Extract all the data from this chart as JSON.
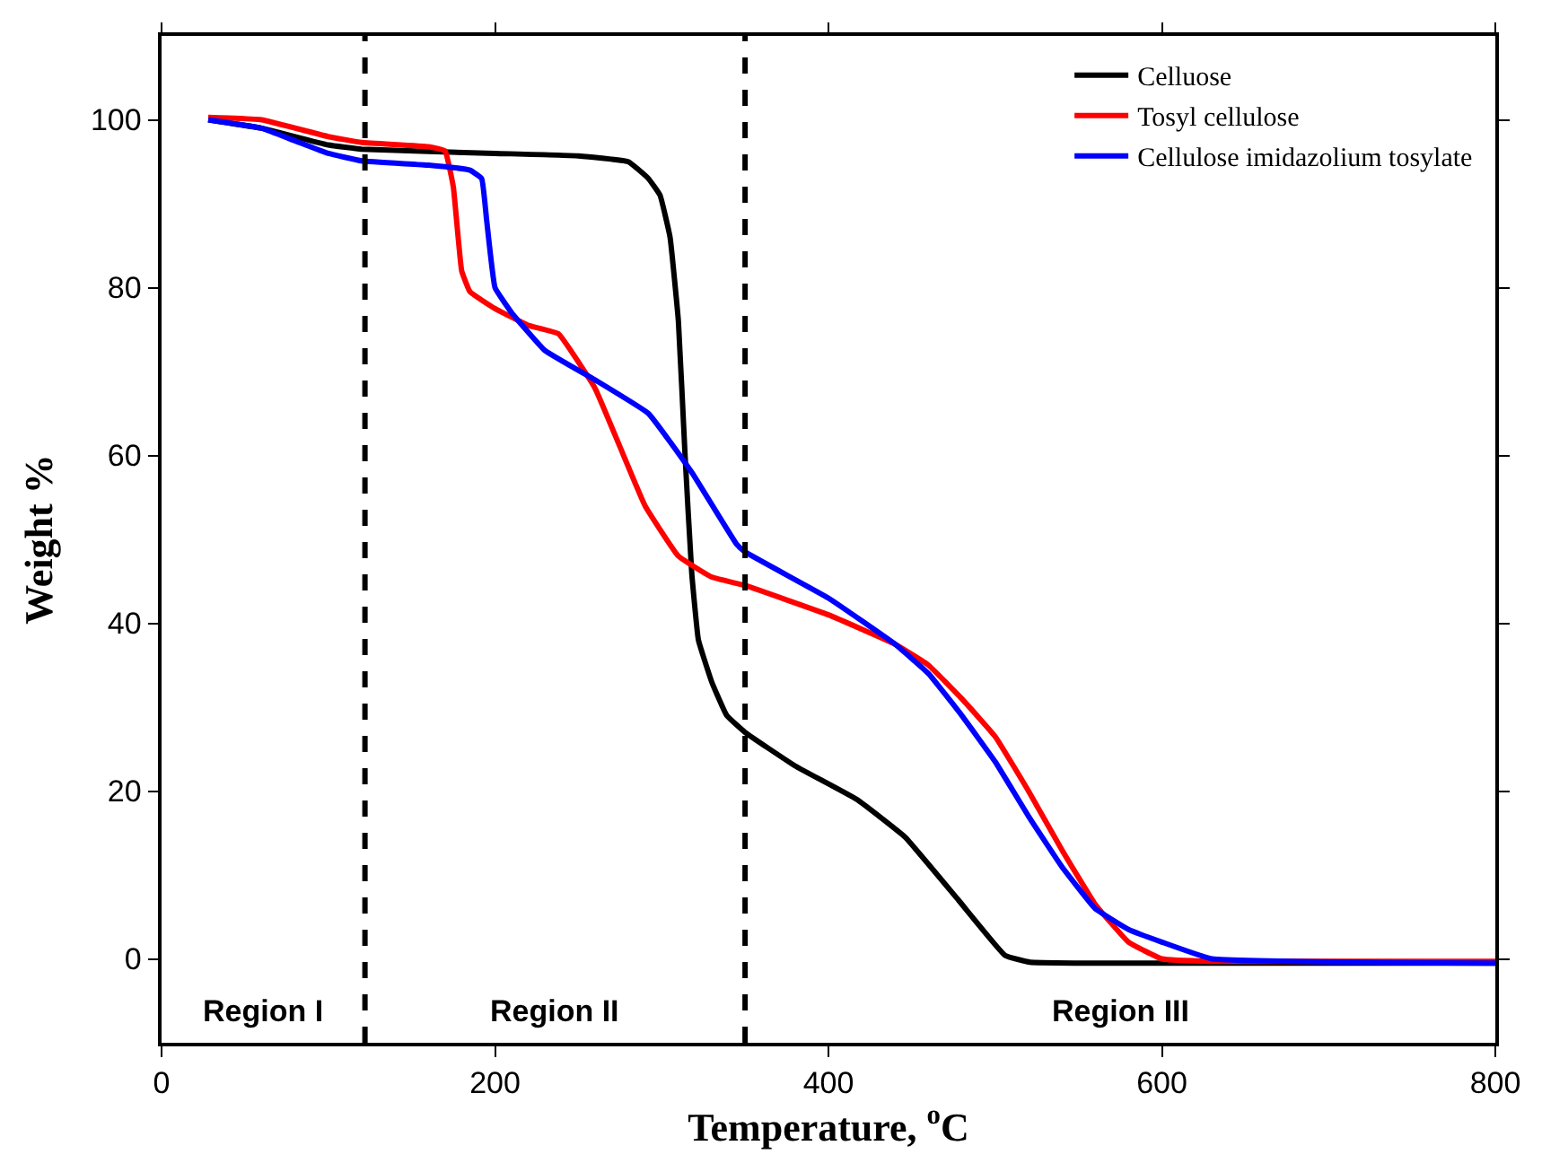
{
  "chart_data": {
    "type": "line",
    "xlabel": "Temperature, $^{o}$C",
    "ylabel": "Weight %",
    "xlim": [
      0,
      800
    ],
    "ylim": [
      -10,
      110
    ],
    "xticks": [
      0,
      200,
      400,
      600,
      800
    ],
    "yticks": [
      0,
      20,
      40,
      60,
      80,
      100
    ],
    "legend": "top right",
    "line_style": "solid",
    "marker": "none",
    "series": [
      {
        "name": "Celluose",
        "color": "#000000",
        "x": [
          28,
          60,
          100,
          120,
          200,
          250,
          280,
          292,
          299,
          305,
          310,
          314,
          318,
          322,
          330,
          339,
          350,
          380,
          417,
          446,
          478,
          506,
          521,
          550,
          800
        ],
        "values": [
          100,
          99,
          97,
          96.5,
          96,
          95.7,
          95,
          93,
          91,
          86,
          76,
          60,
          46,
          38,
          33,
          29,
          27,
          23,
          19,
          14.5,
          7,
          0.4,
          -0.4,
          -0.5,
          -0.5
        ]
      },
      {
        "name": "Tosyl cellulose",
        "color": "#ff0000",
        "x": [
          28,
          60,
          100,
          120,
          160,
          170,
          175,
          180,
          185,
          200,
          220,
          238,
          260,
          275,
          290,
          310,
          330,
          350,
          400,
          440,
          460,
          480,
          500,
          520,
          540,
          560,
          580,
          600,
          630,
          800
        ],
        "values": [
          100.3,
          100,
          98,
          97.3,
          96.8,
          96.3,
          92,
          82,
          79.5,
          77.5,
          75.5,
          74.5,
          68,
          61,
          54,
          48,
          45.5,
          44.5,
          41,
          37.5,
          35,
          31,
          26.5,
          20,
          13,
          6.5,
          2,
          0,
          -0.3,
          -0.3
        ]
      },
      {
        "name": "Cellulose imidazolium tosylate",
        "color": "#0000ff",
        "x": [
          28,
          60,
          80,
          100,
          120,
          160,
          185,
          192,
          195,
          200,
          210,
          230,
          260,
          292,
          318,
          345,
          350,
          400,
          440,
          460,
          480,
          500,
          520,
          540,
          560,
          580,
          600,
          630,
          800
        ],
        "values": [
          100,
          99,
          97.5,
          96,
          95.1,
          94.6,
          94,
          93,
          88,
          80,
          77,
          72.5,
          69,
          65,
          58,
          49.4,
          48.5,
          43,
          37.5,
          34,
          29,
          23.5,
          17,
          11,
          6,
          3.5,
          2,
          0,
          -0.5
        ]
      }
    ],
    "ref_lines": [
      {
        "axis": "x",
        "value": 122,
        "color": "#000000",
        "line_style": "dashed"
      },
      {
        "axis": "x",
        "value": 350,
        "color": "#000000",
        "line_style": "dashed"
      }
    ],
    "annotations": [
      "Region I",
      "Region II",
      "Region III"
    ]
  }
}
